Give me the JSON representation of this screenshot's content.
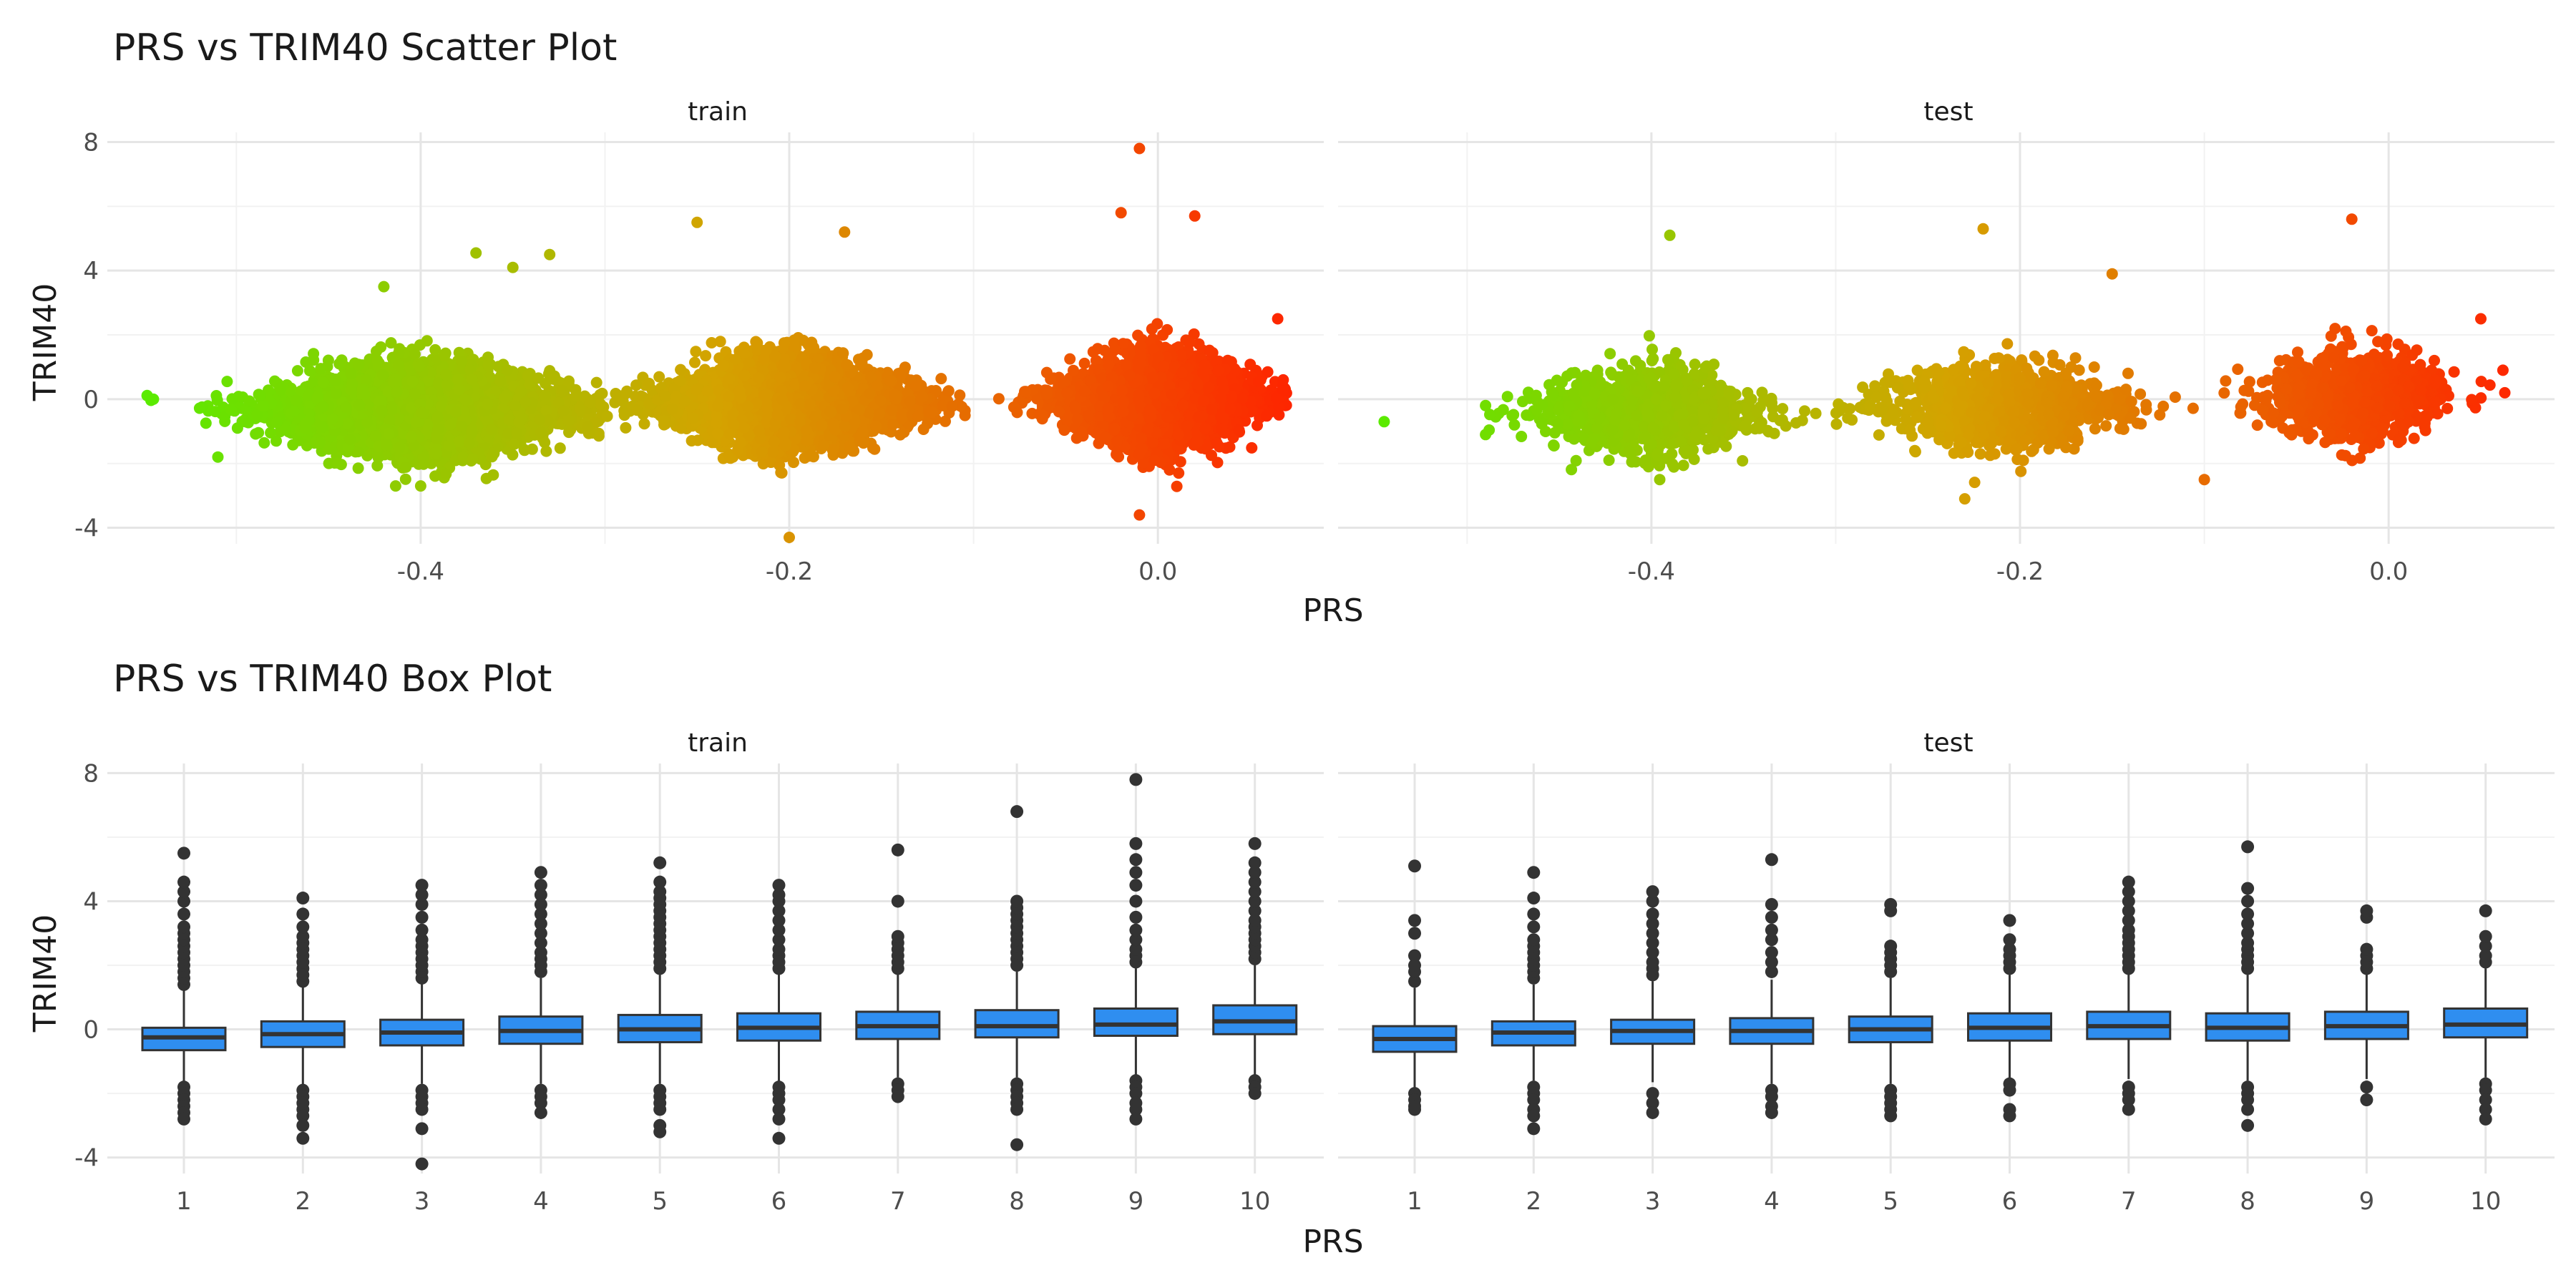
{
  "colors": {
    "grid_major": "#e5e5e5",
    "grid_minor": "#f2f2f2",
    "box_fill": "#2f8ef0",
    "box_stroke": "#333333",
    "outlier": "#333333",
    "gradient_low": "#55ee00",
    "gradient_mid": "#d4a300",
    "gradient_high": "#ff2200"
  },
  "chart_data": [
    {
      "type": "scatter",
      "title": "PRS vs TRIM40 Scatter Plot",
      "xlabel": "PRS",
      "ylabel": "TRIM40",
      "xlim": [
        -0.57,
        0.09
      ],
      "ylim": [
        -4.5,
        8.3
      ],
      "xticks": [
        -0.4,
        -0.2,
        0.0
      ],
      "xtick_labels": [
        "-0.4",
        "-0.2",
        "0.0"
      ],
      "yticks": [
        -4,
        0,
        4,
        8
      ],
      "ytick_labels": [
        "-4",
        "0",
        "4",
        "8"
      ],
      "color_encoding": "PRS (green low to red high)",
      "grid": true,
      "panels": [
        {
          "name": "train",
          "clusters": [
            {
              "x_center": -0.4,
              "x_range": [
                -0.55,
                -0.3
              ],
              "y_center": -0.3,
              "y_range": [
                -2.7,
                4.6
              ],
              "approx_points": 4000
            },
            {
              "x_center": -0.2,
              "x_range": [
                -0.3,
                -0.1
              ],
              "y_center": -0.1,
              "y_range": [
                -4.3,
                5.5
              ],
              "approx_points": 4000
            },
            {
              "x_center": 0.0,
              "x_range": [
                -0.09,
                0.07
              ],
              "y_center": 0.0,
              "y_range": [
                -3.6,
                7.8
              ],
              "approx_points": 4000
            }
          ],
          "extreme_points": [
            {
              "x": -0.545,
              "y": 0.0
            },
            {
              "x": -0.505,
              "y": 0.55
            },
            {
              "x": -0.51,
              "y": -1.8
            },
            {
              "x": -0.37,
              "y": 4.55
            },
            {
              "x": -0.35,
              "y": 4.1
            },
            {
              "x": -0.33,
              "y": 4.5
            },
            {
              "x": -0.42,
              "y": 3.5
            },
            {
              "x": -0.4,
              "y": -2.7
            },
            {
              "x": -0.25,
              "y": 5.5
            },
            {
              "x": -0.17,
              "y": 5.2
            },
            {
              "x": -0.2,
              "y": -4.3
            },
            {
              "x": -0.01,
              "y": 7.8
            },
            {
              "x": -0.02,
              "y": 5.8
            },
            {
              "x": 0.02,
              "y": 5.7
            },
            {
              "x": 0.065,
              "y": 2.5
            },
            {
              "x": 0.068,
              "y": 0.6
            },
            {
              "x": -0.01,
              "y": -3.6
            }
          ]
        },
        {
          "name": "test",
          "clusters": [
            {
              "x_center": -0.4,
              "x_range": [
                -0.49,
                -0.3
              ],
              "y_center": -0.4,
              "y_range": [
                -2.5,
                5.1
              ],
              "approx_points": 1000
            },
            {
              "x_center": -0.21,
              "x_range": [
                -0.3,
                -0.1
              ],
              "y_center": -0.2,
              "y_range": [
                -3.1,
                5.3
              ],
              "approx_points": 1000
            },
            {
              "x_center": -0.02,
              "x_range": [
                -0.09,
                0.06
              ],
              "y_center": 0.1,
              "y_range": [
                -3.0,
                5.6
              ],
              "approx_points": 1000
            }
          ],
          "extreme_points": [
            {
              "x": -0.545,
              "y": -0.7
            },
            {
              "x": -0.49,
              "y": -0.2
            },
            {
              "x": -0.49,
              "y": -1.1
            },
            {
              "x": -0.39,
              "y": 5.1
            },
            {
              "x": -0.22,
              "y": 5.3
            },
            {
              "x": -0.15,
              "y": 3.9
            },
            {
              "x": -0.23,
              "y": -3.1
            },
            {
              "x": -0.02,
              "y": 5.6
            },
            {
              "x": 0.05,
              "y": 2.5
            },
            {
              "x": 0.062,
              "y": 0.9
            },
            {
              "x": 0.063,
              "y": 0.2
            },
            {
              "x": -0.1,
              "y": -2.5
            }
          ]
        }
      ]
    },
    {
      "type": "box",
      "title": "PRS vs TRIM40 Box Plot",
      "xlabel": "PRS",
      "ylabel": "TRIM40",
      "categories": [
        "1",
        "2",
        "3",
        "4",
        "5",
        "6",
        "7",
        "8",
        "9",
        "10"
      ],
      "ylim": [
        -4.5,
        8.3
      ],
      "yticks": [
        -4,
        0,
        4,
        8
      ],
      "ytick_labels": [
        "-4",
        "0",
        "4",
        "8"
      ],
      "grid": true,
      "panels": [
        {
          "name": "train",
          "boxes": [
            {
              "q1": -0.65,
              "median": -0.25,
              "q3": 0.05,
              "whisker_low": -1.65,
              "whisker_high": 1.25,
              "outliers_high": [
                1.4,
                1.6,
                1.8,
                2.0,
                2.2,
                2.4,
                2.6,
                2.8,
                3.0,
                3.2,
                3.6,
                4.0,
                4.3,
                4.6,
                5.5
              ],
              "outliers_low": [
                -1.8,
                -2.0,
                -2.2,
                -2.4,
                -2.6,
                -2.8
              ]
            },
            {
              "q1": -0.55,
              "median": -0.15,
              "q3": 0.25,
              "whisker_low": -1.75,
              "whisker_high": 1.35,
              "outliers_high": [
                1.5,
                1.7,
                1.9,
                2.1,
                2.3,
                2.5,
                2.7,
                2.9,
                3.2,
                3.6,
                4.1
              ],
              "outliers_low": [
                -1.9,
                -2.1,
                -2.3,
                -2.5,
                -2.7,
                -3.0,
                -3.4
              ]
            },
            {
              "q1": -0.5,
              "median": -0.1,
              "q3": 0.3,
              "whisker_low": -1.7,
              "whisker_high": 1.5,
              "outliers_high": [
                1.6,
                1.8,
                2.0,
                2.2,
                2.4,
                2.6,
                2.8,
                3.1,
                3.5,
                3.9,
                4.2,
                4.5
              ],
              "outliers_low": [
                -1.9,
                -2.1,
                -2.3,
                -2.5,
                -3.1,
                -4.2
              ]
            },
            {
              "q1": -0.45,
              "median": -0.05,
              "q3": 0.4,
              "whisker_low": -1.7,
              "whisker_high": 1.6,
              "outliers_high": [
                1.8,
                2.0,
                2.2,
                2.4,
                2.7,
                3.0,
                3.3,
                3.6,
                3.9,
                4.2,
                4.5,
                4.9
              ],
              "outliers_low": [
                -1.9,
                -2.1,
                -2.3,
                -2.6
              ]
            },
            {
              "q1": -0.4,
              "median": 0.0,
              "q3": 0.45,
              "whisker_low": -1.7,
              "whisker_high": 1.7,
              "outliers_high": [
                1.9,
                2.1,
                2.3,
                2.5,
                2.7,
                2.9,
                3.1,
                3.3,
                3.5,
                3.7,
                3.9,
                4.1,
                4.3,
                4.6,
                5.2
              ],
              "outliers_low": [
                -1.9,
                -2.1,
                -2.3,
                -2.5,
                -3.0,
                -3.2
              ]
            },
            {
              "q1": -0.35,
              "median": 0.05,
              "q3": 0.5,
              "whisker_low": -1.65,
              "whisker_high": 1.75,
              "outliers_high": [
                1.9,
                2.1,
                2.3,
                2.5,
                2.8,
                3.1,
                3.4,
                3.7,
                4.0,
                4.2,
                4.5
              ],
              "outliers_low": [
                -1.8,
                -2.0,
                -2.2,
                -2.5,
                -2.8,
                -3.4
              ]
            },
            {
              "q1": -0.3,
              "median": 0.1,
              "q3": 0.55,
              "whisker_low": -1.5,
              "whisker_high": 1.75,
              "outliers_high": [
                1.9,
                2.1,
                2.3,
                2.5,
                2.7,
                2.9,
                4.0,
                5.6
              ],
              "outliers_low": [
                -1.7,
                -1.9,
                -2.1
              ]
            },
            {
              "q1": -0.25,
              "median": 0.1,
              "q3": 0.6,
              "whisker_low": -1.5,
              "whisker_high": 1.8,
              "outliers_high": [
                2.0,
                2.2,
                2.4,
                2.6,
                2.8,
                3.0,
                3.2,
                3.4,
                3.6,
                3.8,
                4.0,
                6.8
              ],
              "outliers_low": [
                -1.7,
                -1.9,
                -2.1,
                -2.3,
                -2.5,
                -3.6
              ]
            },
            {
              "q1": -0.2,
              "median": 0.15,
              "q3": 0.65,
              "whisker_low": -1.45,
              "whisker_high": 1.9,
              "outliers_high": [
                2.1,
                2.3,
                2.5,
                2.8,
                3.1,
                3.5,
                4.0,
                4.5,
                4.9,
                5.3,
                5.8,
                7.8
              ],
              "outliers_low": [
                -1.6,
                -1.8,
                -2.0,
                -2.3,
                -2.5,
                -2.8
              ]
            },
            {
              "q1": -0.15,
              "median": 0.25,
              "q3": 0.75,
              "whisker_low": -1.5,
              "whisker_high": 2.0,
              "outliers_high": [
                2.2,
                2.4,
                2.6,
                2.8,
                3.0,
                3.2,
                3.4,
                3.7,
                4.0,
                4.3,
                4.6,
                4.9,
                5.2,
                5.8
              ],
              "outliers_low": [
                -1.6,
                -1.8,
                -2.0
              ]
            }
          ]
        },
        {
          "name": "test",
          "boxes": [
            {
              "q1": -0.7,
              "median": -0.3,
              "q3": 0.1,
              "whisker_low": -1.9,
              "whisker_high": 1.3,
              "outliers_high": [
                1.5,
                1.8,
                2.0,
                2.3,
                3.0,
                3.4,
                5.1
              ],
              "outliers_low": [
                -2.0,
                -2.2,
                -2.4,
                -2.5
              ]
            },
            {
              "q1": -0.5,
              "median": -0.1,
              "q3": 0.25,
              "whisker_low": -1.6,
              "whisker_high": 1.4,
              "outliers_high": [
                1.6,
                1.8,
                2.0,
                2.2,
                2.4,
                2.6,
                2.8,
                3.2,
                3.6,
                4.1,
                4.9
              ],
              "outliers_low": [
                -1.8,
                -2.0,
                -2.2,
                -2.5,
                -2.7,
                -3.1
              ]
            },
            {
              "q1": -0.45,
              "median": -0.05,
              "q3": 0.3,
              "whisker_low": -1.65,
              "whisker_high": 1.5,
              "outliers_high": [
                1.7,
                1.9,
                2.1,
                2.4,
                2.7,
                3.0,
                3.3,
                3.6,
                4.0,
                4.3
              ],
              "outliers_low": [
                -2.0,
                -2.3,
                -2.6
              ]
            },
            {
              "q1": -0.45,
              "median": -0.05,
              "q3": 0.35,
              "whisker_low": -1.7,
              "whisker_high": 1.55,
              "outliers_high": [
                1.8,
                2.1,
                2.4,
                2.8,
                3.1,
                3.5,
                3.9,
                5.3
              ],
              "outliers_low": [
                -1.9,
                -2.1,
                -2.4,
                -2.6
              ]
            },
            {
              "q1": -0.4,
              "median": 0.0,
              "q3": 0.4,
              "whisker_low": -1.7,
              "whisker_high": 1.6,
              "outliers_high": [
                1.8,
                2.0,
                2.2,
                2.4,
                2.6,
                3.7,
                3.9
              ],
              "outliers_low": [
                -1.9,
                -2.1,
                -2.3,
                -2.5,
                -2.7
              ]
            },
            {
              "q1": -0.35,
              "median": 0.05,
              "q3": 0.5,
              "whisker_low": -1.6,
              "whisker_high": 1.7,
              "outliers_high": [
                1.9,
                2.1,
                2.3,
                2.5,
                2.8,
                3.4
              ],
              "outliers_low": [
                -1.7,
                -1.9,
                -2.5,
                -2.7
              ]
            },
            {
              "q1": -0.3,
              "median": 0.1,
              "q3": 0.55,
              "whisker_low": -1.55,
              "whisker_high": 1.75,
              "outliers_high": [
                1.9,
                2.1,
                2.3,
                2.5,
                2.7,
                2.9,
                3.1,
                3.4,
                3.7,
                4.0,
                4.3,
                4.6
              ],
              "outliers_low": [
                -1.8,
                -2.0,
                -2.2,
                -2.5
              ]
            },
            {
              "q1": -0.35,
              "median": 0.05,
              "q3": 0.5,
              "whisker_low": -1.6,
              "whisker_high": 1.7,
              "outliers_high": [
                1.9,
                2.1,
                2.3,
                2.5,
                2.7,
                3.0,
                3.3,
                3.6,
                4.0,
                4.4,
                5.7
              ],
              "outliers_low": [
                -1.8,
                -2.0,
                -2.2,
                -2.5,
                -3.0
              ]
            },
            {
              "q1": -0.3,
              "median": 0.1,
              "q3": 0.55,
              "whisker_low": -1.55,
              "whisker_high": 1.75,
              "outliers_high": [
                1.9,
                2.1,
                2.3,
                2.5,
                3.5,
                3.7
              ],
              "outliers_low": [
                -1.8,
                -2.2
              ]
            },
            {
              "q1": -0.25,
              "median": 0.15,
              "q3": 0.65,
              "whisker_low": -1.5,
              "whisker_high": 1.9,
              "outliers_high": [
                2.1,
                2.3,
                2.6,
                2.9,
                3.7
              ],
              "outliers_low": [
                -1.7,
                -1.9,
                -2.2,
                -2.5,
                -2.8
              ]
            }
          ]
        }
      ]
    }
  ]
}
